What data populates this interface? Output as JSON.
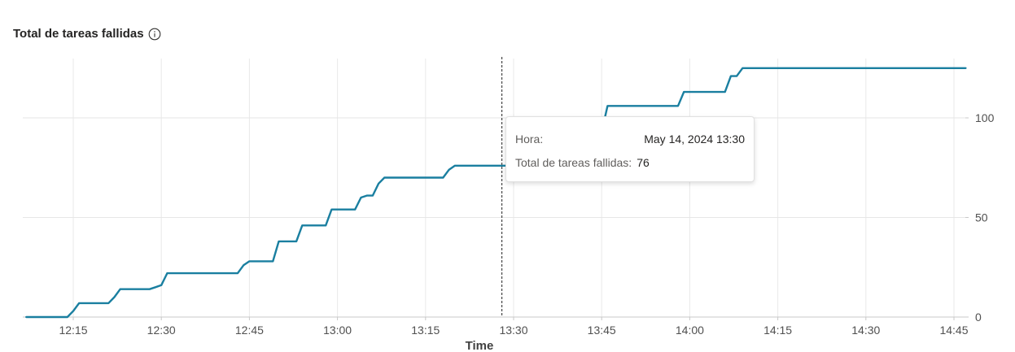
{
  "header": {
    "title": "Total de tareas fallidas",
    "info_icon": "info-circle-icon"
  },
  "tooltip": {
    "row1_label": "Hora:",
    "row1_value": "May 14, 2024 13:30",
    "row2_label": "Total de tareas fallidas:",
    "row2_value": "76"
  },
  "chart_data": {
    "type": "line",
    "title": "Total de tareas fallidas",
    "xlabel": "Time",
    "ylabel": "",
    "x_ticks": [
      "12:15",
      "12:30",
      "12:45",
      "13:00",
      "13:15",
      "13:30",
      "13:45",
      "14:00",
      "14:15",
      "14:30",
      "14:45"
    ],
    "y_ticks": [
      0,
      50,
      100
    ],
    "ylim": [
      0,
      130
    ],
    "y_axis_side": "right",
    "grid": true,
    "line_color": "#1a7fa0",
    "hover_time": "13:28",
    "series": [
      {
        "values": [
          [
            "12:07",
            0
          ],
          [
            "12:14",
            0
          ],
          [
            "12:15",
            3
          ],
          [
            "12:16",
            7
          ],
          [
            "12:21",
            7
          ],
          [
            "12:22",
            10
          ],
          [
            "12:23",
            14
          ],
          [
            "12:28",
            14
          ],
          [
            "12:29",
            15
          ],
          [
            "12:30",
            16
          ],
          [
            "12:31",
            22
          ],
          [
            "12:43",
            22
          ],
          [
            "12:44",
            26
          ],
          [
            "12:45",
            28
          ],
          [
            "12:49",
            28
          ],
          [
            "12:50",
            38
          ],
          [
            "12:53",
            38
          ],
          [
            "12:54",
            46
          ],
          [
            "12:58",
            46
          ],
          [
            "12:59",
            54
          ],
          [
            "13:03",
            54
          ],
          [
            "13:04",
            60
          ],
          [
            "13:05",
            61
          ],
          [
            "13:06",
            61
          ],
          [
            "13:07",
            67
          ],
          [
            "13:08",
            70
          ],
          [
            "13:18",
            70
          ],
          [
            "13:19",
            74
          ],
          [
            "13:20",
            76
          ],
          [
            "13:31",
            76
          ],
          [
            "13:45",
            93
          ],
          [
            "13:46",
            106
          ],
          [
            "13:58",
            106
          ],
          [
            "13:59",
            113
          ],
          [
            "14:06",
            113
          ],
          [
            "14:07",
            121
          ],
          [
            "14:08",
            121
          ],
          [
            "14:09",
            125
          ],
          [
            "14:47",
            125
          ]
        ]
      }
    ]
  }
}
